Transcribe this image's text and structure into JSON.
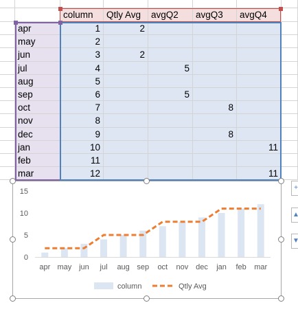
{
  "spreadsheet": {
    "headers": [
      "column",
      "Qtly Avg",
      "avgQ2",
      "avgQ3",
      "avgQ4"
    ],
    "rows": [
      {
        "label": "apr",
        "values": [
          "1",
          "2",
          "",
          "",
          ""
        ]
      },
      {
        "label": "may",
        "values": [
          "2",
          "",
          "",
          "",
          ""
        ]
      },
      {
        "label": "jun",
        "values": [
          "3",
          "2",
          "",
          "",
          ""
        ]
      },
      {
        "label": "jul",
        "values": [
          "4",
          "",
          "5",
          "",
          ""
        ]
      },
      {
        "label": "aug",
        "values": [
          "5",
          "",
          "",
          "",
          ""
        ]
      },
      {
        "label": "sep",
        "values": [
          "6",
          "",
          "5",
          "",
          ""
        ]
      },
      {
        "label": "oct",
        "values": [
          "7",
          "",
          "",
          "8",
          ""
        ]
      },
      {
        "label": "nov",
        "values": [
          "8",
          "",
          "",
          "",
          ""
        ]
      },
      {
        "label": "dec",
        "values": [
          "9",
          "",
          "",
          "8",
          ""
        ]
      },
      {
        "label": "jan",
        "values": [
          "10",
          "",
          "",
          "",
          "11"
        ]
      },
      {
        "label": "feb",
        "values": [
          "11",
          "",
          "",
          "",
          ""
        ]
      },
      {
        "label": "mar",
        "values": [
          "12",
          "",
          "",
          "",
          "11"
        ]
      }
    ]
  },
  "colors": {
    "bar": "#dce6f2",
    "avg_line": "#ed7d31",
    "header_fill": "#f4dede",
    "label_fill": "#e6e0ef",
    "value_fill": "#dde6f2",
    "selection_red": "#c0504d",
    "selection_purple": "#8064a2",
    "selection_blue": "#4f81bd"
  },
  "side_icons": [
    "chart-elements-icon",
    "chart-styles-icon",
    "chart-filters-icon"
  ],
  "chart_data": {
    "type": "bar",
    "categories": [
      "apr",
      "may",
      "jun",
      "jul",
      "aug",
      "sep",
      "oct",
      "nov",
      "dec",
      "jan",
      "feb",
      "mar"
    ],
    "series": [
      {
        "name": "column",
        "type": "bar",
        "values": [
          1,
          2,
          3,
          4,
          5,
          6,
          7,
          8,
          9,
          10,
          11,
          12
        ]
      },
      {
        "name": "Qtly Avg",
        "type": "line-dashed",
        "values": [
          2,
          2,
          2,
          5,
          5,
          5,
          8,
          8,
          8,
          11,
          11,
          11
        ]
      }
    ],
    "yticks": [
      "0",
      "5",
      "10",
      "15"
    ],
    "ylim": [
      0,
      15
    ],
    "grid": false,
    "legend": "bottom",
    "title": "",
    "xlabel": "",
    "ylabel": ""
  }
}
